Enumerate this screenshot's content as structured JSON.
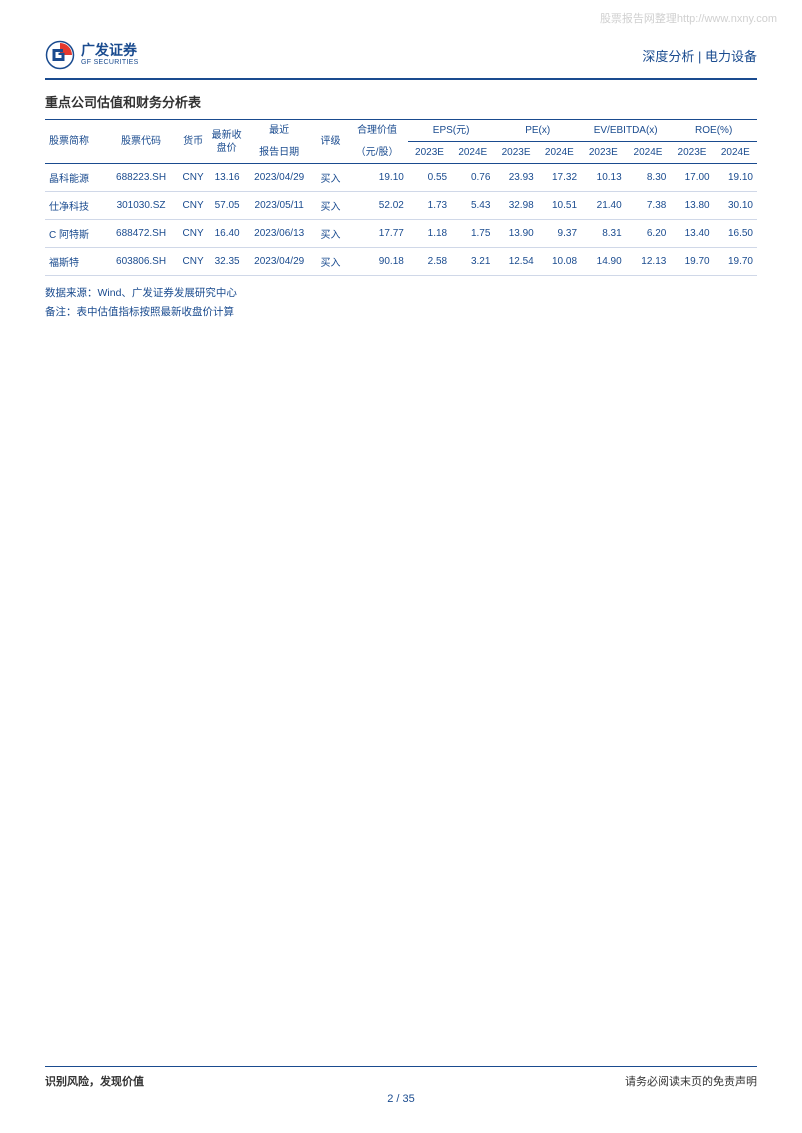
{
  "watermark": "股票报告网整理http://www.nxny.com",
  "header": {
    "logo_cn": "广发证券",
    "logo_en": "GF SECURITIES",
    "right": "深度分析 | 电力设备"
  },
  "section_title": "重点公司估值和财务分析表",
  "colors": {
    "brand": "#1a4b8f",
    "red_accent": "#e4392e",
    "text_dark": "#333333",
    "border_light": "#d0d8e8"
  },
  "table": {
    "header_row1": {
      "stock_name": "股票简称",
      "stock_code": "股票代码",
      "currency": "货币",
      "latest_close": "最新收盘价",
      "latest": "最近",
      "report_date": "报告日期",
      "rating": "评级",
      "fair_value": "合理价值",
      "fair_value_sub": "（元/股）",
      "eps": "EPS(元)",
      "pe": "PE(x)",
      "ev_ebitda": "EV/EBITDA(x)",
      "roe": "ROE(%)"
    },
    "header_row2": {
      "y2023": "2023E",
      "y2024": "2024E"
    },
    "rows": [
      {
        "name": "晶科能源",
        "code": "688223.SH",
        "currency": "CNY",
        "close": "13.16",
        "date": "2023/04/29",
        "rating": "买入",
        "fair": "19.10",
        "eps23": "0.55",
        "eps24": "0.76",
        "pe23": "23.93",
        "pe24": "17.32",
        "ev23": "10.13",
        "ev24": "8.30",
        "roe23": "17.00",
        "roe24": "19.10"
      },
      {
        "name": "仕净科技",
        "code": "301030.SZ",
        "currency": "CNY",
        "close": "57.05",
        "date": "2023/05/11",
        "rating": "买入",
        "fair": "52.02",
        "eps23": "1.73",
        "eps24": "5.43",
        "pe23": "32.98",
        "pe24": "10.51",
        "ev23": "21.40",
        "ev24": "7.38",
        "roe23": "13.80",
        "roe24": "30.10"
      },
      {
        "name": "C 阿特斯",
        "code": "688472.SH",
        "currency": "CNY",
        "close": "16.40",
        "date": "2023/06/13",
        "rating": "买入",
        "fair": "17.77",
        "eps23": "1.18",
        "eps24": "1.75",
        "pe23": "13.90",
        "pe24": "9.37",
        "ev23": "8.31",
        "ev24": "6.20",
        "roe23": "13.40",
        "roe24": "16.50"
      },
      {
        "name": "福斯特",
        "code": "603806.SH",
        "currency": "CNY",
        "close": "32.35",
        "date": "2023/04/29",
        "rating": "买入",
        "fair": "90.18",
        "eps23": "2.58",
        "eps24": "3.21",
        "pe23": "12.54",
        "pe24": "10.08",
        "ev23": "14.90",
        "ev24": "12.13",
        "roe23": "19.70",
        "roe24": "19.70"
      }
    ]
  },
  "notes": {
    "source": "数据来源：Wind、广发证券发展研究中心",
    "remark": "备注：表中估值指标按照最新收盘价计算"
  },
  "footer": {
    "left": "识别风险，发现价值",
    "right": "请务必阅读末页的免责声明",
    "page_current": "2",
    "page_sep": " / ",
    "page_total": "35"
  }
}
